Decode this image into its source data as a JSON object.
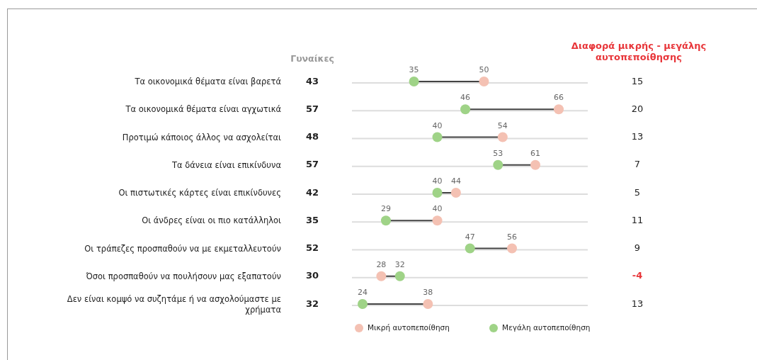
{
  "chart_data": {
    "type": "scatter",
    "orientation": "horizontal",
    "categories": [
      "Τα οικονομικά θέματα είναι βαρετά",
      "Τα οικονομικά θέματα είναι αγχωτικά",
      "Προτιμώ κάποιος άλλος να ασχολείται",
      "Τα δάνεια είναι επικίνδυνα",
      "Οι πιστωτικές κάρτες είναι επικίνδυνες",
      "Οι άνδρες είναι οι πιο κατάλληλοι",
      "Οι τράπεζες προσπαθούν  να με εκμεταλλευτούν",
      "Όσοι προσπαθούν να πουλήσουν μας εξαπατούν",
      "Δεν είναι κομψό να συζητάμε  ή να ασχολούμαστε με χρήματα"
    ],
    "series": [
      {
        "name": "Μικρή αυτοπεποίθηση",
        "color": "#f4c1b3",
        "values": [
          50,
          66,
          54,
          61,
          44,
          40,
          56,
          28,
          38
        ]
      },
      {
        "name": "Μεγάλη αυτοπεποίθηση",
        "color": "#9fd387",
        "values": [
          35,
          46,
          40,
          53,
          40,
          29,
          47,
          32,
          24
        ]
      }
    ],
    "data_labels": true,
    "grid": true,
    "legend": "bottom",
    "marker": "circle",
    "annotations": [
      "Γυναίκες",
      "43",
      "57",
      "48",
      "57",
      "42",
      "35",
      "52",
      "30",
      "32",
      "Διαφορά μικρής - μεγάλης αυτοπεποίθησης",
      "15",
      "20",
      "13",
      "7",
      "5",
      "11",
      "9",
      "-4",
      "13"
    ]
  }
}
